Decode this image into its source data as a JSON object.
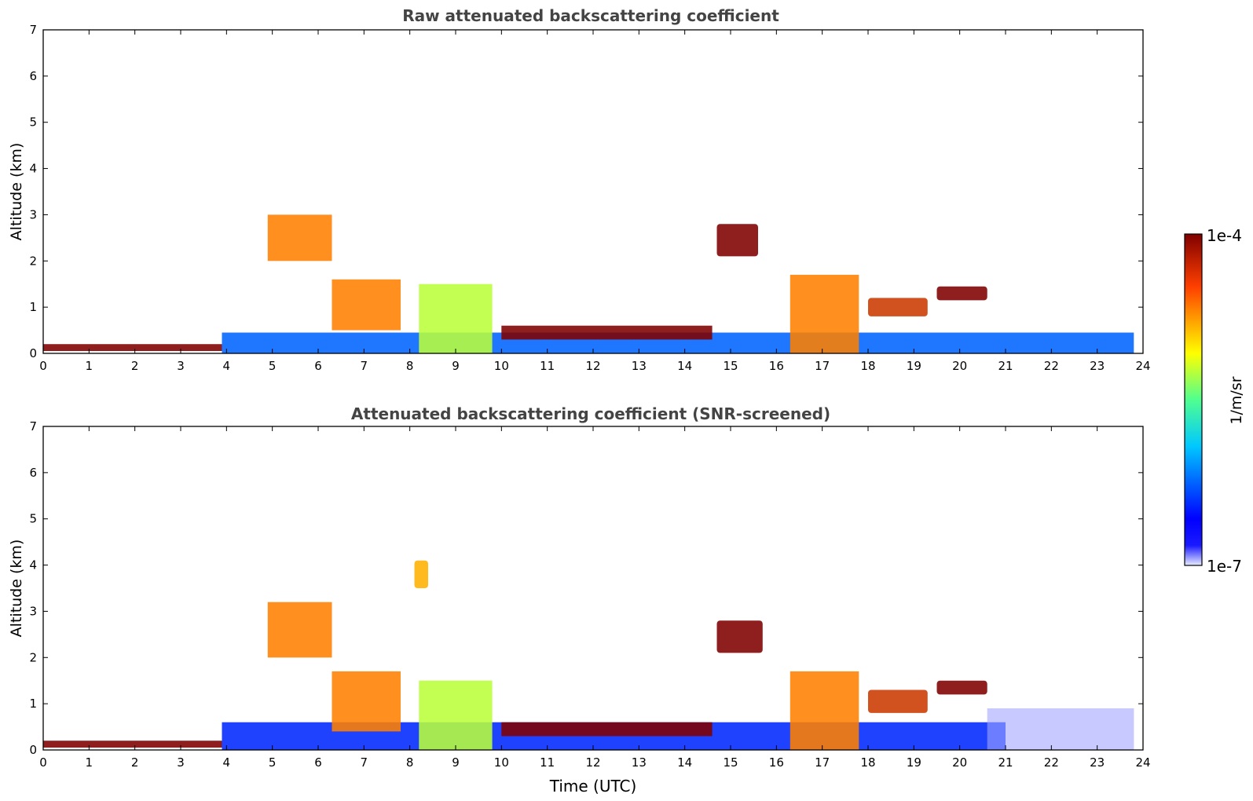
{
  "chart_data": [
    {
      "type": "heatmap",
      "title": "Raw attenuated backscattering coefficient",
      "xlabel": "",
      "ylabel": "Altitude (km)",
      "xlim": [
        0,
        24
      ],
      "ylim": [
        0,
        7
      ],
      "x_ticks": [
        "0",
        "1",
        "2",
        "3",
        "4",
        "5",
        "6",
        "7",
        "8",
        "9",
        "10",
        "11",
        "12",
        "13",
        "14",
        "15",
        "16",
        "17",
        "18",
        "19",
        "20",
        "21",
        "22",
        "23",
        "24"
      ],
      "y_ticks": [
        "0",
        "1",
        "2",
        "3",
        "4",
        "5",
        "6",
        "7"
      ],
      "grid": false,
      "features": [
        {
          "kind": "surface_layer",
          "t": [
            0,
            3.9
          ],
          "alt": [
            0.05,
            0.2
          ],
          "level": 1.0
        },
        {
          "kind": "boundary_layer",
          "t": [
            3.9,
            23.8
          ],
          "alt": [
            0,
            0.45
          ],
          "level": 0.25
        },
        {
          "kind": "aerosol_plume",
          "t": [
            4.9,
            6.3
          ],
          "alt": [
            2.0,
            3.0
          ],
          "level": 0.8
        },
        {
          "kind": "aerosol_plume",
          "t": [
            6.3,
            7.8
          ],
          "alt": [
            0.5,
            1.6
          ],
          "level": 0.8
        },
        {
          "kind": "aerosol_plume",
          "t": [
            8.2,
            9.8
          ],
          "alt": [
            0.0,
            1.5
          ],
          "level": 0.6
        },
        {
          "kind": "cloud_layer",
          "t": [
            10.0,
            14.6
          ],
          "alt": [
            0.3,
            0.6
          ],
          "level": 1.0
        },
        {
          "kind": "cloud",
          "t": [
            14.7,
            15.6
          ],
          "alt": [
            2.1,
            2.8
          ],
          "level": 1.0
        },
        {
          "kind": "aerosol_plume",
          "t": [
            16.3,
            17.8
          ],
          "alt": [
            0.0,
            1.7
          ],
          "level": 0.8
        },
        {
          "kind": "cloud",
          "t": [
            19.5,
            20.6
          ],
          "alt": [
            1.15,
            1.45
          ],
          "level": 1.0
        },
        {
          "kind": "cloud",
          "t": [
            18.0,
            19.3
          ],
          "alt": [
            0.8,
            1.2
          ],
          "level": 0.9
        }
      ]
    },
    {
      "type": "heatmap",
      "title": "Attenuated backscattering coefficient (SNR-screened)",
      "xlabel": "Time (UTC)",
      "ylabel": "Altitude (km)",
      "xlim": [
        0,
        24
      ],
      "ylim": [
        0,
        7
      ],
      "x_ticks": [
        "0",
        "1",
        "2",
        "3",
        "4",
        "5",
        "6",
        "7",
        "8",
        "9",
        "10",
        "11",
        "12",
        "13",
        "14",
        "15",
        "16",
        "17",
        "18",
        "19",
        "20",
        "21",
        "22",
        "23",
        "24"
      ],
      "y_ticks": [
        "0",
        "1",
        "2",
        "3",
        "4",
        "5",
        "6",
        "7"
      ],
      "grid": false,
      "features": [
        {
          "kind": "surface_layer",
          "t": [
            0,
            3.9
          ],
          "alt": [
            0.05,
            0.2
          ],
          "level": 1.0
        },
        {
          "kind": "boundary_layer",
          "t": [
            3.9,
            21.0
          ],
          "alt": [
            0,
            0.6
          ],
          "level": 0.2
        },
        {
          "kind": "aerosol_plume",
          "t": [
            4.9,
            6.3
          ],
          "alt": [
            2.0,
            3.2
          ],
          "level": 0.8
        },
        {
          "kind": "aerosol_plume",
          "t": [
            6.3,
            7.8
          ],
          "alt": [
            0.4,
            1.7
          ],
          "level": 0.8
        },
        {
          "kind": "aerosol_plume",
          "t": [
            8.2,
            9.8
          ],
          "alt": [
            0.0,
            1.5
          ],
          "level": 0.6
        },
        {
          "kind": "aerosol_patch",
          "t": [
            8.1,
            8.4
          ],
          "alt": [
            3.5,
            4.1
          ],
          "level": 0.75
        },
        {
          "kind": "cloud_layer",
          "t": [
            10.0,
            14.6
          ],
          "alt": [
            0.3,
            0.6
          ],
          "level": 1.0
        },
        {
          "kind": "cloud",
          "t": [
            14.7,
            15.7
          ],
          "alt": [
            2.1,
            2.8
          ],
          "level": 1.0
        },
        {
          "kind": "aerosol_plume",
          "t": [
            16.3,
            17.8
          ],
          "alt": [
            0.0,
            1.7
          ],
          "level": 0.8
        },
        {
          "kind": "cloud",
          "t": [
            19.5,
            20.6
          ],
          "alt": [
            1.2,
            1.5
          ],
          "level": 1.0
        },
        {
          "kind": "cloud",
          "t": [
            18.0,
            19.3
          ],
          "alt": [
            0.8,
            1.3
          ],
          "level": 0.9
        },
        {
          "kind": "faint_layer",
          "t": [
            20.6,
            23.8
          ],
          "alt": [
            0.0,
            0.9
          ],
          "level": 0.05
        }
      ]
    }
  ],
  "colorbar": {
    "label": "1/m/sr",
    "max_label": "1e-4",
    "min_label": "1e-7",
    "colormap": "jet",
    "colors": [
      "#e8ecff",
      "#0000ff",
      "#00c8ff",
      "#50ff90",
      "#ffff00",
      "#ff6000",
      "#800000"
    ]
  }
}
